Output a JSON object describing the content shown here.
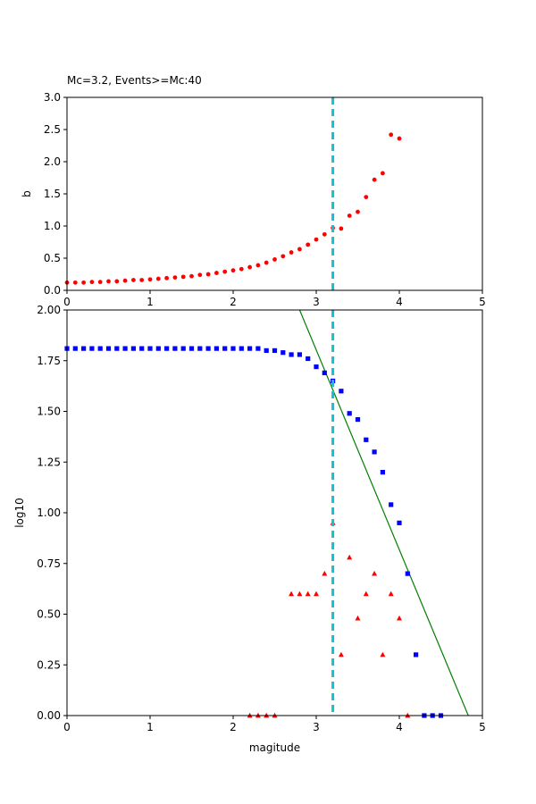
{
  "chart_data": [
    {
      "type": "scatter",
      "title": "Mc=3.2, Events>=Mc:40",
      "xlabel": "",
      "ylabel": "b",
      "xlim": [
        0,
        5
      ],
      "ylim": [
        0,
        3
      ],
      "xticks": [
        "0",
        "1",
        "2",
        "3",
        "4",
        "5"
      ],
      "yticks": [
        "0.0",
        "0.5",
        "1.0",
        "1.5",
        "2.0",
        "2.5",
        "3.0"
      ],
      "mc_line_x": 3.2,
      "colors": {
        "points": "#ff0000",
        "mc_line": "#17becf"
      },
      "series": [
        {
          "marker": "circle",
          "x": [
            0.0,
            0.1,
            0.2,
            0.3,
            0.4,
            0.5,
            0.6,
            0.7,
            0.8,
            0.9,
            1.0,
            1.1,
            1.2,
            1.3,
            1.4,
            1.5,
            1.6,
            1.7,
            1.8,
            1.9,
            2.0,
            2.1,
            2.2,
            2.3,
            2.4,
            2.5,
            2.6,
            2.7,
            2.8,
            2.9,
            3.0,
            3.1,
            3.2,
            3.3,
            3.4,
            3.5,
            3.6,
            3.7,
            3.8,
            3.9,
            4.0
          ],
          "values": [
            0.12,
            0.12,
            0.12,
            0.13,
            0.13,
            0.14,
            0.14,
            0.15,
            0.16,
            0.16,
            0.17,
            0.18,
            0.19,
            0.2,
            0.21,
            0.22,
            0.24,
            0.25,
            0.27,
            0.29,
            0.31,
            0.33,
            0.36,
            0.39,
            0.43,
            0.48,
            0.53,
            0.59,
            0.64,
            0.71,
            0.79,
            0.87,
            0.97,
            0.96,
            1.16,
            1.22,
            1.45,
            1.72,
            1.82,
            2.42,
            2.36
          ]
        }
      ]
    },
    {
      "type": "scatter",
      "title": "",
      "xlabel": "magitude",
      "ylabel": "log10",
      "xlim": [
        0,
        5
      ],
      "ylim": [
        0,
        2
      ],
      "xticks": [
        "0",
        "1",
        "2",
        "3",
        "4",
        "5"
      ],
      "yticks": [
        "0.00",
        "0.25",
        "0.50",
        "0.75",
        "1.00",
        "1.25",
        "1.50",
        "1.75",
        "2.00"
      ],
      "mc_line_x": 3.2,
      "fit_line": {
        "x": [
          2.8,
          4.83
        ],
        "y": [
          2.0,
          0.0
        ]
      },
      "colors": {
        "cumulative": "#0000ff",
        "noncumulative": "#ff0000",
        "fit": "#008000",
        "mc_line": "#17becf"
      },
      "series": [
        {
          "marker": "square",
          "x": [
            0.0,
            0.1,
            0.2,
            0.3,
            0.4,
            0.5,
            0.6,
            0.7,
            0.8,
            0.9,
            1.0,
            1.1,
            1.2,
            1.3,
            1.4,
            1.5,
            1.6,
            1.7,
            1.8,
            1.9,
            2.0,
            2.1,
            2.2,
            2.3,
            2.4,
            2.5,
            2.6,
            2.7,
            2.8,
            2.9,
            3.0,
            3.1,
            3.2,
            3.3,
            3.4,
            3.5,
            3.6,
            3.7,
            3.8,
            3.9,
            4.0,
            4.1,
            4.2,
            4.3,
            4.4,
            4.5
          ],
          "values": [
            1.81,
            1.81,
            1.81,
            1.81,
            1.81,
            1.81,
            1.81,
            1.81,
            1.81,
            1.81,
            1.81,
            1.81,
            1.81,
            1.81,
            1.81,
            1.81,
            1.81,
            1.81,
            1.81,
            1.81,
            1.81,
            1.81,
            1.81,
            1.81,
            1.8,
            1.8,
            1.79,
            1.78,
            1.78,
            1.76,
            1.72,
            1.69,
            1.65,
            1.6,
            1.49,
            1.46,
            1.36,
            1.3,
            1.2,
            1.04,
            0.95,
            0.7,
            0.3,
            0.0,
            0.0,
            0.0
          ]
        },
        {
          "marker": "triangle",
          "x": [
            2.2,
            2.3,
            2.4,
            2.5,
            2.7,
            2.8,
            2.9,
            3.0,
            3.1,
            3.2,
            3.3,
            3.4,
            3.5,
            3.6,
            3.7,
            3.8,
            3.9,
            4.0,
            4.1
          ],
          "values": [
            0.0,
            0.0,
            0.0,
            0.0,
            0.6,
            0.6,
            0.6,
            0.6,
            0.7,
            0.95,
            0.3,
            0.78,
            0.48,
            0.6,
            0.7,
            0.3,
            0.6,
            0.48,
            0.0
          ]
        }
      ]
    }
  ]
}
